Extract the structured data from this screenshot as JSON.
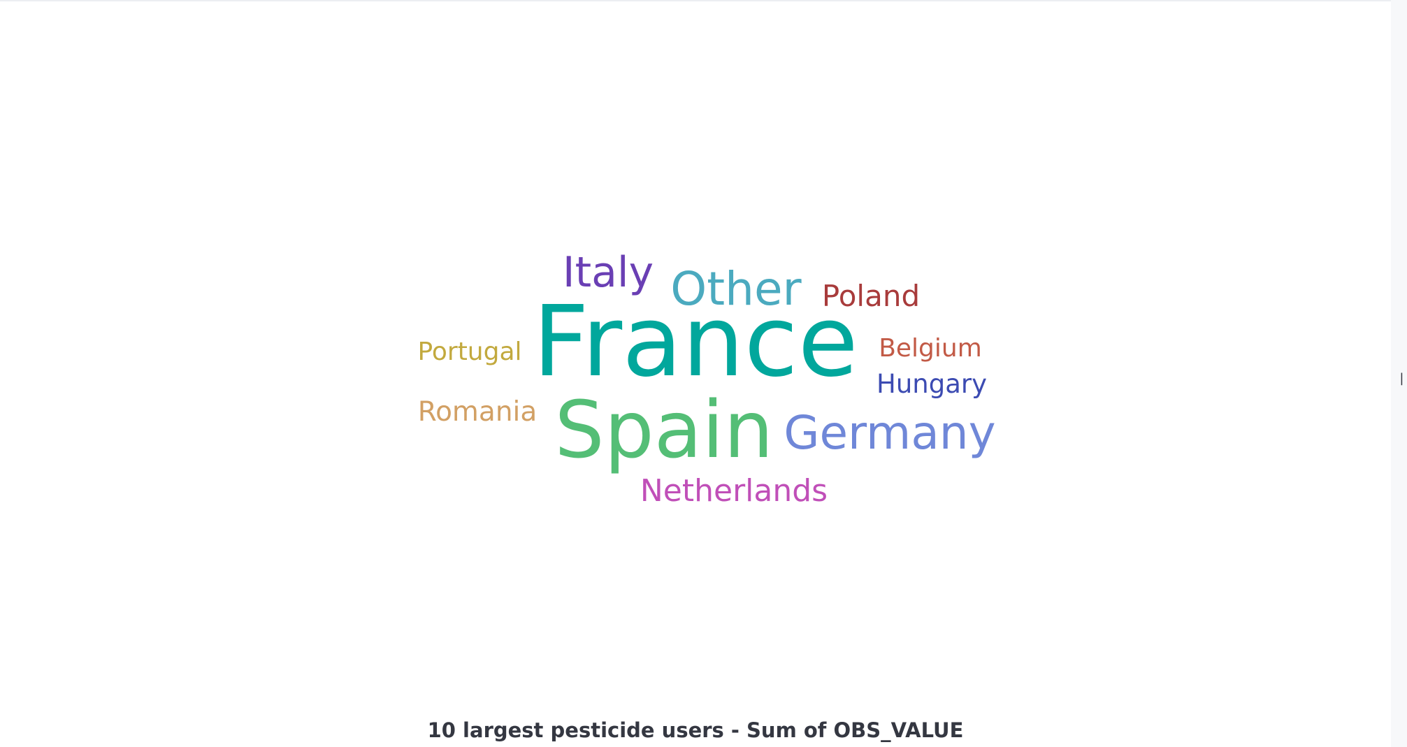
{
  "panel": {
    "caption": "10 largest pesticide users - Sum of OBS_VALUE",
    "resize_handle_glyph": "||"
  },
  "chart_data": {
    "type": "wordcloud",
    "title": "10 largest pesticide users - Sum of OBS_VALUE",
    "words": [
      {
        "text": "France",
        "rank": 1,
        "color": "#01a79c"
      },
      {
        "text": "Spain",
        "rank": 2,
        "color": "#54be76"
      },
      {
        "text": "Germany",
        "rank": 3,
        "color": "#6f87d8"
      },
      {
        "text": "Other",
        "rank": 4,
        "color": "#4baabf"
      },
      {
        "text": "Italy",
        "rank": 5,
        "color": "#6a3fb4"
      },
      {
        "text": "Netherlands",
        "rank": 6,
        "color": "#c04fb8"
      },
      {
        "text": "Poland",
        "rank": 7,
        "color": "#a83b3b"
      },
      {
        "text": "Romania",
        "rank": 8,
        "color": "#d2a064"
      },
      {
        "text": "Portugal",
        "rank": 9,
        "color": "#c2a93e"
      },
      {
        "text": "Belgium",
        "rank": 10,
        "color": "#c25a46"
      },
      {
        "text": "Hungary",
        "rank": 11,
        "color": "#3c4bb2"
      }
    ]
  }
}
